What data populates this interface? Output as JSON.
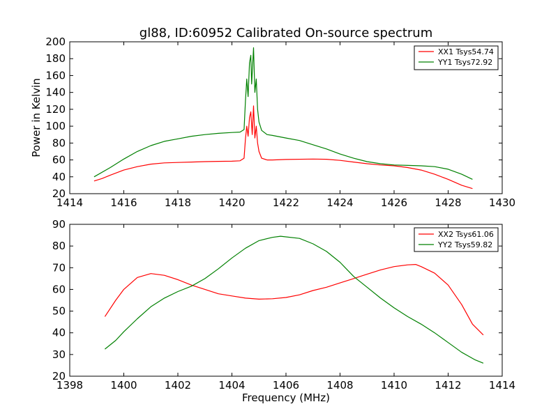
{
  "chart_data": [
    {
      "type": "line",
      "title": "gl88, ID:60952 Calibrated On-source spectrum",
      "xlabel": "",
      "ylabel": "Power in Kelvin",
      "xlim": [
        1414,
        1430
      ],
      "ylim": [
        20,
        200
      ],
      "xticks": [
        "1414",
        "1416",
        "1418",
        "1420",
        "1422",
        "1424",
        "1426",
        "1428",
        "1430"
      ],
      "yticks": [
        "20",
        "40",
        "60",
        "80",
        "100",
        "120",
        "140",
        "160",
        "180",
        "200"
      ],
      "grid": false,
      "legend_position": "top-right",
      "series": [
        {
          "name": "XX1 Tsys54.74",
          "color": "#ff0000",
          "points": [
            [
              1414.9,
              35
            ],
            [
              1415.2,
              38
            ],
            [
              1415.5,
              42
            ],
            [
              1416.0,
              48
            ],
            [
              1416.5,
              52
            ],
            [
              1417.0,
              55
            ],
            [
              1417.5,
              56.5
            ],
            [
              1418.0,
              57
            ],
            [
              1418.5,
              57.5
            ],
            [
              1419.0,
              58
            ],
            [
              1419.5,
              58.3
            ],
            [
              1420.0,
              58.5
            ],
            [
              1420.3,
              59
            ],
            [
              1420.45,
              62
            ],
            [
              1420.5,
              85
            ],
            [
              1420.55,
              100
            ],
            [
              1420.6,
              88
            ],
            [
              1420.65,
              110
            ],
            [
              1420.7,
              117
            ],
            [
              1420.75,
              90
            ],
            [
              1420.8,
              124
            ],
            [
              1420.85,
              86
            ],
            [
              1420.9,
              100
            ],
            [
              1420.95,
              80
            ],
            [
              1421.0,
              70
            ],
            [
              1421.1,
              62
            ],
            [
              1421.3,
              60
            ],
            [
              1421.5,
              60
            ],
            [
              1422.0,
              60.5
            ],
            [
              1423.0,
              61
            ],
            [
              1423.5,
              60.8
            ],
            [
              1424.0,
              59.5
            ],
            [
              1424.5,
              57.5
            ],
            [
              1425.0,
              55.5
            ],
            [
              1425.5,
              54
            ],
            [
              1426.0,
              53
            ],
            [
              1426.5,
              51
            ],
            [
              1427.0,
              48
            ],
            [
              1427.5,
              43
            ],
            [
              1428.0,
              37
            ],
            [
              1428.5,
              30
            ],
            [
              1428.9,
              26
            ]
          ]
        },
        {
          "name": "YY1 Tsys72.92",
          "color": "#008000",
          "points": [
            [
              1414.9,
              40
            ],
            [
              1415.5,
              51
            ],
            [
              1416.0,
              61
            ],
            [
              1416.5,
              70
            ],
            [
              1417.0,
              77
            ],
            [
              1417.5,
              82
            ],
            [
              1418.0,
              85
            ],
            [
              1418.5,
              88
            ],
            [
              1419.0,
              90
            ],
            [
              1419.5,
              91.5
            ],
            [
              1420.0,
              92.5
            ],
            [
              1420.3,
              93
            ],
            [
              1420.45,
              96
            ],
            [
              1420.5,
              130
            ],
            [
              1420.55,
              156
            ],
            [
              1420.6,
              135
            ],
            [
              1420.65,
              175
            ],
            [
              1420.7,
              184
            ],
            [
              1420.73,
              150
            ],
            [
              1420.8,
              193
            ],
            [
              1420.85,
              140
            ],
            [
              1420.9,
              156
            ],
            [
              1420.95,
              120
            ],
            [
              1421.0,
              105
            ],
            [
              1421.1,
              95
            ],
            [
              1421.3,
              90
            ],
            [
              1421.5,
              89
            ],
            [
              1422.0,
              86
            ],
            [
              1422.5,
              83
            ],
            [
              1423.0,
              78
            ],
            [
              1423.5,
              73
            ],
            [
              1424.0,
              67
            ],
            [
              1424.5,
              62
            ],
            [
              1425.0,
              58
            ],
            [
              1425.5,
              55.5
            ],
            [
              1426.0,
              54
            ],
            [
              1426.5,
              53.5
            ],
            [
              1427.0,
              53
            ],
            [
              1427.5,
              52
            ],
            [
              1428.0,
              49
            ],
            [
              1428.5,
              43
            ],
            [
              1428.9,
              37
            ]
          ]
        }
      ]
    },
    {
      "type": "line",
      "title": "",
      "xlabel": "Frequency (MHz)",
      "ylabel": "",
      "xlim": [
        1398,
        1414
      ],
      "ylim": [
        20,
        90
      ],
      "xticks": [
        "1398",
        "1400",
        "1402",
        "1404",
        "1406",
        "1408",
        "1410",
        "1412",
        "1414"
      ],
      "yticks": [
        "20",
        "30",
        "40",
        "50",
        "60",
        "70",
        "80",
        "90"
      ],
      "grid": false,
      "legend_position": "top-right",
      "series": [
        {
          "name": "XX2 Tsys61.06",
          "color": "#ff0000",
          "points": [
            [
              1399.3,
              47.5
            ],
            [
              1399.7,
              55
            ],
            [
              1400.0,
              60
            ],
            [
              1400.5,
              65.5
            ],
            [
              1401.0,
              67.3
            ],
            [
              1401.5,
              66.5
            ],
            [
              1402.0,
              64.5
            ],
            [
              1402.5,
              62
            ],
            [
              1403.0,
              60
            ],
            [
              1403.5,
              58
            ],
            [
              1404.0,
              57
            ],
            [
              1404.5,
              56
            ],
            [
              1405.0,
              55.5
            ],
            [
              1405.5,
              55.7
            ],
            [
              1406.0,
              56.3
            ],
            [
              1406.5,
              57.5
            ],
            [
              1407.0,
              59.5
            ],
            [
              1407.5,
              61
            ],
            [
              1408.0,
              63
            ],
            [
              1408.5,
              65
            ],
            [
              1409.0,
              67
            ],
            [
              1409.5,
              69
            ],
            [
              1410.0,
              70.5
            ],
            [
              1410.5,
              71.3
            ],
            [
              1410.8,
              71.5
            ],
            [
              1411.0,
              70.5
            ],
            [
              1411.5,
              67.5
            ],
            [
              1412.0,
              62
            ],
            [
              1412.5,
              53
            ],
            [
              1412.9,
              44
            ],
            [
              1413.3,
              39
            ]
          ]
        },
        {
          "name": "YY2 Tsys59.82",
          "color": "#008000",
          "points": [
            [
              1399.3,
              32.5
            ],
            [
              1399.7,
              36.5
            ],
            [
              1400.0,
              40.5
            ],
            [
              1400.5,
              46.5
            ],
            [
              1401.0,
              52
            ],
            [
              1401.5,
              56
            ],
            [
              1402.0,
              59
            ],
            [
              1402.5,
              61.5
            ],
            [
              1403.0,
              65
            ],
            [
              1403.5,
              69.5
            ],
            [
              1404.0,
              74.5
            ],
            [
              1404.5,
              79
            ],
            [
              1405.0,
              82.5
            ],
            [
              1405.5,
              84
            ],
            [
              1405.8,
              84.5
            ],
            [
              1406.5,
              83.5
            ],
            [
              1407.0,
              81
            ],
            [
              1407.5,
              77.5
            ],
            [
              1408.0,
              72.5
            ],
            [
              1408.5,
              66
            ],
            [
              1409.0,
              61
            ],
            [
              1409.5,
              56
            ],
            [
              1410.0,
              51.5
            ],
            [
              1410.5,
              47.5
            ],
            [
              1411.0,
              44
            ],
            [
              1411.5,
              40
            ],
            [
              1412.0,
              35.5
            ],
            [
              1412.5,
              31
            ],
            [
              1413.0,
              27.5
            ],
            [
              1413.3,
              26
            ]
          ]
        }
      ]
    }
  ]
}
